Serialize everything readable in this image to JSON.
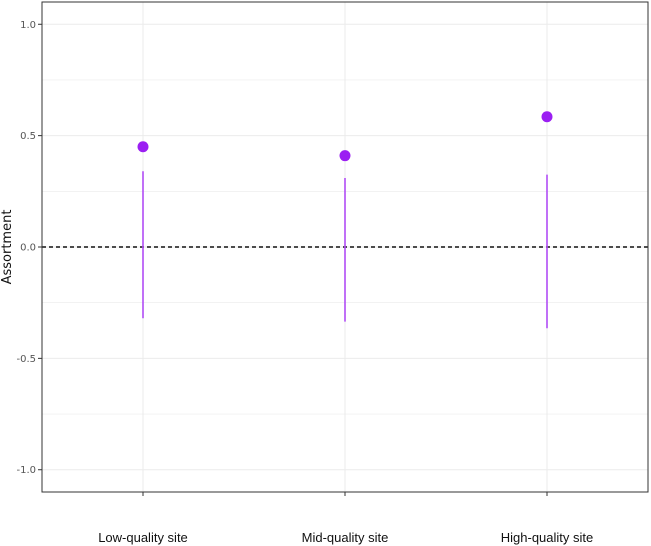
{
  "chart_data": {
    "type": "scatter",
    "ylabel": "Assortment",
    "xlabel": "",
    "ylim": [
      -1.1,
      1.1
    ],
    "yticks": [
      -1.0,
      -0.5,
      0.0,
      0.5,
      1.0
    ],
    "ytick_labels": [
      "-1.0",
      "-0.5",
      "0.0",
      "0.5",
      "1.0"
    ],
    "categories": [
      "Low-quality site",
      "Mid-quality site",
      "High-quality site"
    ],
    "values": [
      0.45,
      0.41,
      0.585
    ],
    "intervals": [
      {
        "low": -0.32,
        "high": 0.34
      },
      {
        "low": -0.335,
        "high": 0.31
      },
      {
        "low": -0.365,
        "high": 0.325
      }
    ],
    "reference_line": 0.0,
    "grid": true,
    "legend": "none",
    "colors": {
      "point": "#9b1ff2",
      "interval": "#b04cf5",
      "reference": "#111111",
      "grid": "#ebebeb"
    }
  }
}
